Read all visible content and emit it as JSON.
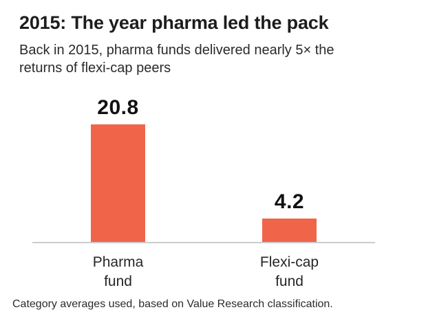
{
  "chart_data": {
    "type": "bar",
    "title": "2015: The year pharma led the pack",
    "subtitle": "Back in 2015, pharma funds delivered nearly 5× the\nreturns of flexi-cap peers",
    "footnote": "Category averages used, based on Value Research classification.",
    "categories": [
      "Pharma fund",
      "Flexi-cap fund"
    ],
    "category_labels": [
      "Pharma\nfund",
      "Flexi-cap\nfund"
    ],
    "values": [
      20.8,
      4.2
    ],
    "value_labels": [
      "20.8",
      "4.2"
    ],
    "xlabel": "",
    "ylabel": "",
    "ylim": [
      0,
      21
    ],
    "grid": false,
    "legend": false,
    "colors": {
      "bar": "#f0654a",
      "axis_line": "#cbcbcb",
      "title_text": "#1d1d1d",
      "body_text": "#2a2a2a"
    }
  }
}
